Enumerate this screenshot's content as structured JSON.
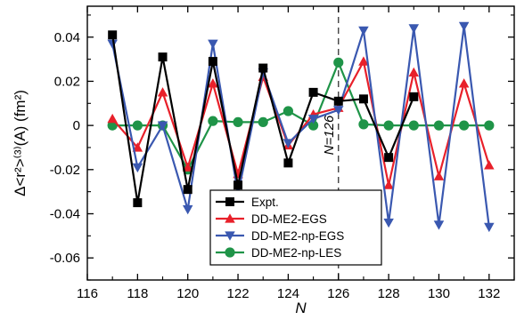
{
  "chart_data": {
    "type": "line",
    "xlabel": "N",
    "ylabel": "Δ<r²>⁽³⁾(A) (fm²)",
    "xlim": [
      116,
      133
    ],
    "ylim": [
      -0.07,
      0.054
    ],
    "x_ticks": [
      116,
      118,
      120,
      122,
      124,
      126,
      128,
      130,
      132
    ],
    "y_ticks": [
      -0.06,
      -0.04,
      -0.02,
      0,
      0.02,
      0.04
    ],
    "x_tick_labels": [
      "116",
      "118",
      "120",
      "122",
      "124",
      "126",
      "128",
      "130",
      "132"
    ],
    "y_tick_labels": [
      "-0.06",
      "-0.04",
      "-0.02",
      "0",
      "0.02",
      "0.04"
    ],
    "grid": false,
    "legend_position": "bottom-center",
    "annotation": {
      "label": "N=126",
      "x": 126
    },
    "series": [
      {
        "name": "Expt.",
        "color": "#000000",
        "marker": "square",
        "x": [
          117,
          118,
          119,
          120,
          121,
          122,
          123,
          124,
          125,
          126,
          127,
          128,
          129
        ],
        "y": [
          0.041,
          -0.035,
          0.031,
          -0.029,
          0.029,
          -0.027,
          0.026,
          -0.017,
          0.015,
          0.011,
          0.012,
          -0.0145,
          0.013
        ]
      },
      {
        "name": "DD-ME2-EGS",
        "color": "#e8202a",
        "marker": "triangle-up",
        "x": [
          117,
          118,
          119,
          120,
          121,
          122,
          123,
          124,
          125,
          126,
          127,
          128,
          129,
          130,
          131,
          132
        ],
        "y": [
          0.003,
          -0.01,
          0.015,
          -0.019,
          0.019,
          -0.022,
          0.022,
          -0.009,
          0.005,
          0.008,
          0.029,
          -0.027,
          0.024,
          -0.023,
          0.019,
          -0.018
        ]
      },
      {
        "name": "DD-ME2-np-EGS",
        "color": "#3a58b0",
        "marker": "triangle-down",
        "x": [
          117,
          118,
          119,
          120,
          121,
          122,
          123,
          124,
          125,
          126,
          127,
          128,
          129,
          130,
          131,
          132
        ],
        "y": [
          0.037,
          -0.019,
          0.0,
          -0.038,
          0.037,
          -0.031,
          0.024,
          -0.008,
          0.003,
          0.007,
          0.043,
          -0.044,
          0.044,
          -0.045,
          0.045,
          -0.046
        ]
      },
      {
        "name": "DD-ME2-np-LES",
        "color": "#1f9448",
        "marker": "circle",
        "x": [
          117,
          118,
          119,
          120,
          121,
          122,
          123,
          124,
          125,
          126,
          127,
          128,
          129,
          130,
          131,
          132
        ],
        "y": [
          0.0,
          0.0,
          0.0,
          -0.02,
          0.002,
          0.0015,
          0.0015,
          0.0065,
          0.0,
          0.0285,
          0.0005,
          0.0,
          0.0,
          0.0,
          0.0,
          0.0
        ]
      }
    ]
  }
}
